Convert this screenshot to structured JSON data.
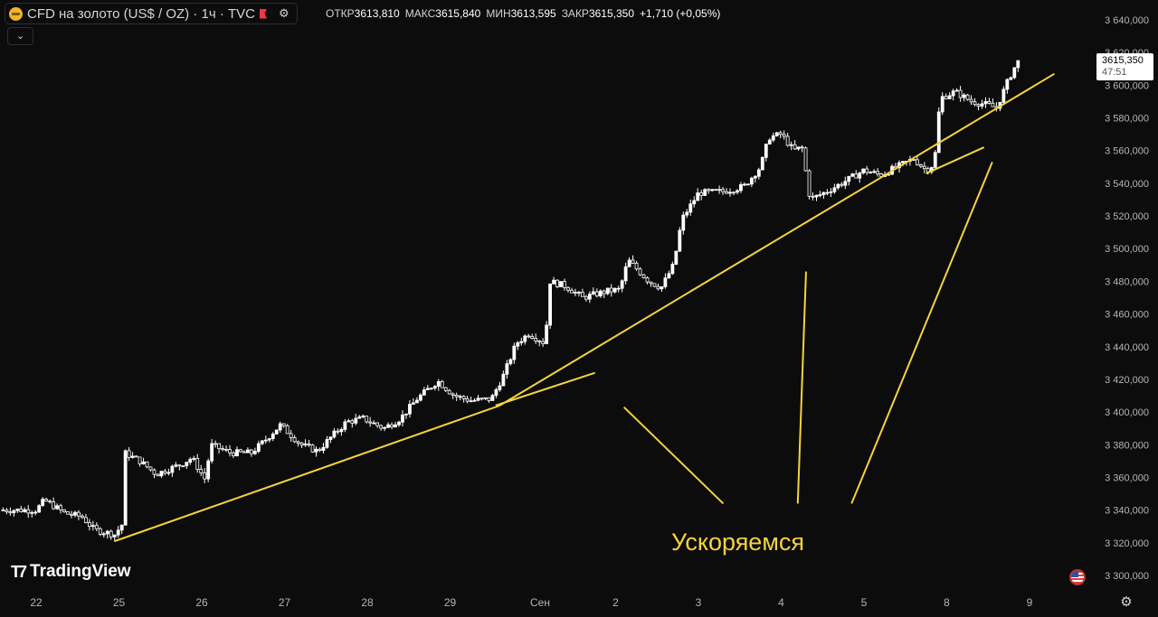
{
  "header": {
    "symbol_title": "CFD на золото (US$ / OZ) · 1ч · TVC",
    "collapse_icon": "chevron-down-icon",
    "ohlc": {
      "open_label": "ОТКР",
      "open": "3613,810",
      "high_label": "МАКС",
      "high": "3615,840",
      "low_label": "МИН",
      "low": "3613,595",
      "close_label": "ЗАКР",
      "close": "3615,350",
      "change": "+1,710 (+0,05%)"
    }
  },
  "last_price": {
    "price": "3615,350",
    "countdown": "47:51"
  },
  "branding": {
    "logo_text": "TradingView"
  },
  "colors": {
    "background": "#0c0c0c",
    "candle": "#ffffff",
    "trendline": "#f5d33b",
    "annotation": "#f5d33b",
    "axis_text": "#b2b5be"
  },
  "chart_data": {
    "type": "candlestick",
    "symbol": "CFD на золото (US$ / OZ)",
    "timeframe": "1ч",
    "y_axis": {
      "min": 3300,
      "max": 3640,
      "step": 20,
      "labels": [
        "3 640,000",
        "3 620,000",
        "3 600,000",
        "3 580,000",
        "3 560,000",
        "3 540,000",
        "3 520,000",
        "3 500,000",
        "3 480,000",
        "3 460,000",
        "3 440,000",
        "3 420,000",
        "3 400,000",
        "3 380,000",
        "3 360,000",
        "3 340,000",
        "3 320,000",
        "3 300,000"
      ]
    },
    "x_axis": {
      "labels": [
        "22",
        "25",
        "26",
        "27",
        "28",
        "29",
        "Сен",
        "2",
        "3",
        "4",
        "5",
        "8",
        "9"
      ]
    },
    "anchors": [
      {
        "d": 0,
        "p": 3340
      },
      {
        "d": 0.1,
        "p": 3346
      },
      {
        "d": 0.35,
        "p": 3338
      },
      {
        "d": 0.55,
        "p": 3336
      },
      {
        "d": 0.7,
        "p": 3328
      },
      {
        "d": 0.95,
        "p": 3325
      },
      {
        "d": 1.05,
        "p": 3332
      },
      {
        "d": 1.07,
        "p": 3375
      },
      {
        "d": 1.25,
        "p": 3370
      },
      {
        "d": 1.45,
        "p": 3362
      },
      {
        "d": 1.75,
        "p": 3368
      },
      {
        "d": 1.88,
        "p": 3372
      },
      {
        "d": 2.05,
        "p": 3358
      },
      {
        "d": 2.1,
        "p": 3380
      },
      {
        "d": 2.35,
        "p": 3375
      },
      {
        "d": 2.6,
        "p": 3375
      },
      {
        "d": 2.75,
        "p": 3382
      },
      {
        "d": 2.95,
        "p": 3392
      },
      {
        "d": 3.2,
        "p": 3380
      },
      {
        "d": 3.4,
        "p": 3376
      },
      {
        "d": 3.55,
        "p": 3384
      },
      {
        "d": 3.75,
        "p": 3394
      },
      {
        "d": 3.95,
        "p": 3396
      },
      {
        "d": 4.2,
        "p": 3390
      },
      {
        "d": 4.4,
        "p": 3396
      },
      {
        "d": 4.6,
        "p": 3408
      },
      {
        "d": 4.85,
        "p": 3419
      },
      {
        "d": 5.05,
        "p": 3410
      },
      {
        "d": 5.25,
        "p": 3407
      },
      {
        "d": 5.5,
        "p": 3408
      },
      {
        "d": 5.65,
        "p": 3423
      },
      {
        "d": 5.8,
        "p": 3442
      },
      {
        "d": 5.95,
        "p": 3448
      },
      {
        "d": 6.15,
        "p": 3442
      },
      {
        "d": 6.2,
        "p": 3480
      },
      {
        "d": 6.4,
        "p": 3477
      },
      {
        "d": 6.6,
        "p": 3470
      },
      {
        "d": 6.9,
        "p": 3474
      },
      {
        "d": 7.05,
        "p": 3475
      },
      {
        "d": 7.15,
        "p": 3493
      },
      {
        "d": 7.4,
        "p": 3480
      },
      {
        "d": 7.55,
        "p": 3476
      },
      {
        "d": 7.7,
        "p": 3490
      },
      {
        "d": 7.8,
        "p": 3518
      },
      {
        "d": 8.0,
        "p": 3534
      },
      {
        "d": 8.3,
        "p": 3535
      },
      {
        "d": 8.55,
        "p": 3538
      },
      {
        "d": 8.75,
        "p": 3550
      },
      {
        "d": 8.85,
        "p": 3568
      },
      {
        "d": 9.0,
        "p": 3570
      },
      {
        "d": 9.15,
        "p": 3560
      },
      {
        "d": 9.25,
        "p": 3562
      },
      {
        "d": 9.35,
        "p": 3530
      },
      {
        "d": 9.55,
        "p": 3535
      },
      {
        "d": 9.8,
        "p": 3542
      },
      {
        "d": 10.0,
        "p": 3548
      },
      {
        "d": 10.2,
        "p": 3545
      },
      {
        "d": 10.4,
        "p": 3550
      },
      {
        "d": 10.6,
        "p": 3555
      },
      {
        "d": 10.75,
        "p": 3548
      },
      {
        "d": 10.85,
        "p": 3552
      },
      {
        "d": 10.92,
        "p": 3592
      },
      {
        "d": 11.1,
        "p": 3596
      },
      {
        "d": 11.3,
        "p": 3590
      },
      {
        "d": 11.5,
        "p": 3588
      },
      {
        "d": 11.6,
        "p": 3586
      },
      {
        "d": 11.75,
        "p": 3604
      },
      {
        "d": 11.85,
        "p": 3614
      },
      {
        "d": 11.9,
        "p": 3615.35
      }
    ],
    "trendlines": [
      {
        "from": {
          "d": 0.95,
          "p": 3321
        },
        "to": {
          "d": 5.6,
          "p": 3404
        }
      },
      {
        "from": {
          "d": 5.55,
          "p": 3404
        },
        "to": {
          "d": 6.75,
          "p": 3424
        }
      },
      {
        "from": {
          "d": 5.6,
          "p": 3404
        },
        "to": {
          "d": 12.3,
          "p": 3607
        }
      },
      {
        "from": {
          "d": 10.75,
          "p": 3546
        },
        "to": {
          "d": 11.45,
          "p": 3562
        }
      }
    ],
    "annotation": {
      "text": "Ускоряемся",
      "pointer_lines": [
        {
          "from": {
            "d": 8.3,
            "p": 3344
          },
          "to": {
            "d": 7.1,
            "p": 3403
          }
        },
        {
          "from": {
            "d": 9.2,
            "p": 3344
          },
          "to": {
            "d": 9.3,
            "p": 3486
          }
        },
        {
          "from": {
            "d": 9.85,
            "p": 3344
          },
          "to": {
            "d": 11.55,
            "p": 3553
          }
        }
      ]
    },
    "grid": false,
    "legend": "top-left"
  }
}
